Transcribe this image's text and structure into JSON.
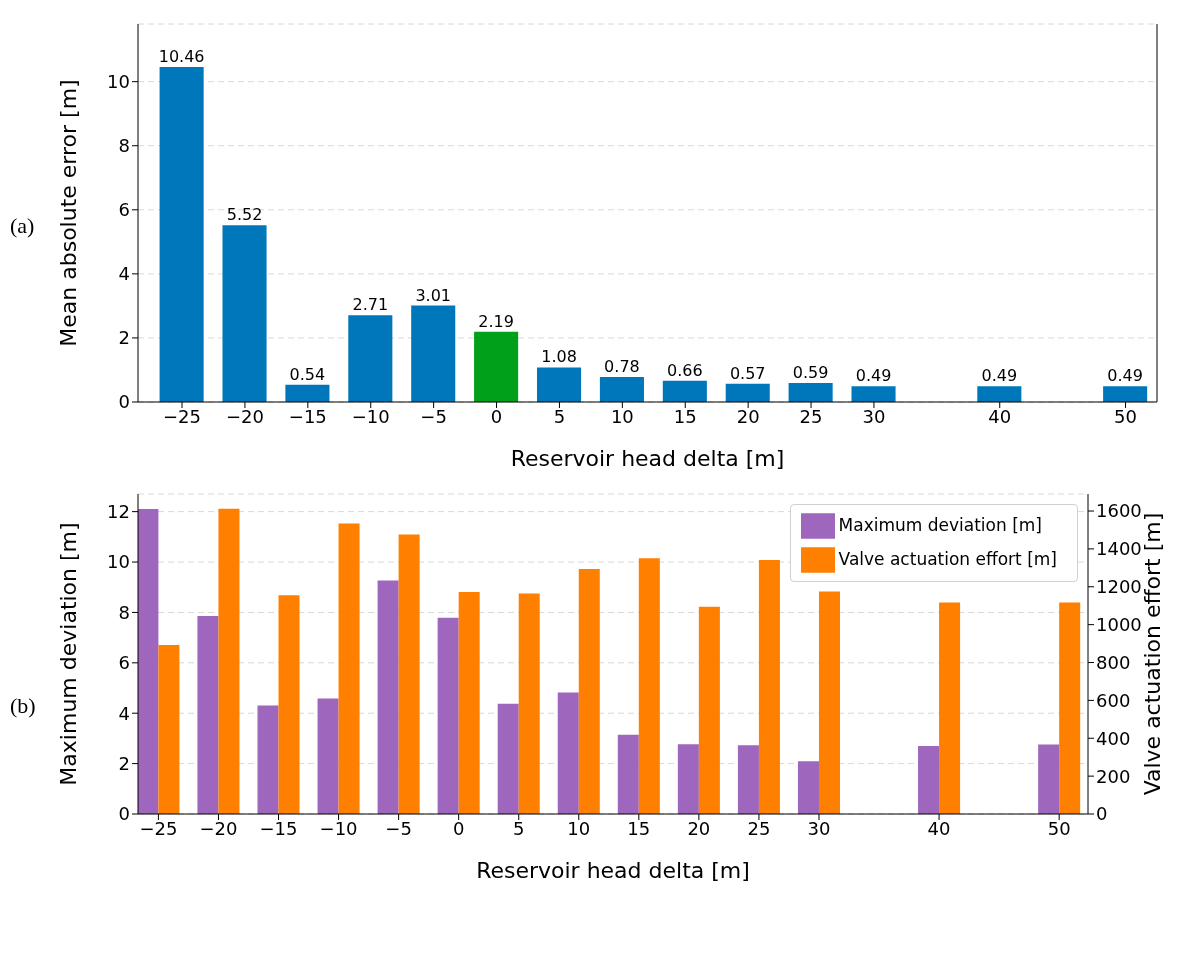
{
  "chart_data": [
    {
      "type": "bar",
      "xlabel": "Reservoir head delta [m]",
      "ylabel": "Mean absolute error [m]",
      "annotations": [
        "(a)"
      ],
      "x": [
        -25,
        -20,
        -15,
        -10,
        -5,
        0,
        5,
        10,
        15,
        20,
        25,
        30,
        40,
        50
      ],
      "values": [
        10.46,
        5.52,
        0.54,
        2.71,
        3.01,
        2.19,
        1.08,
        0.78,
        0.66,
        0.57,
        0.59,
        0.49,
        0.49,
        0.49
      ],
      "colors": [
        "#0077bb",
        "#0077bb",
        "#0077bb",
        "#0077bb",
        "#0077bb",
        "#00a01a",
        "#0077bb",
        "#0077bb",
        "#0077bb",
        "#0077bb",
        "#0077bb",
        "#0077bb",
        "#0077bb",
        "#0077bb"
      ],
      "data_labels": true,
      "xlim": [
        -28.5,
        52.5
      ],
      "xticks": [
        {
          "value": -25,
          "label": "−25"
        },
        {
          "value": -20,
          "label": "−20"
        },
        {
          "value": -15,
          "label": "−15"
        },
        {
          "value": -10,
          "label": "−10"
        },
        {
          "value": -5,
          "label": "−5"
        },
        0,
        5,
        10,
        15,
        20,
        25,
        30,
        40,
        50
      ],
      "ylim": [
        0,
        11.8
      ],
      "yticks": [
        0,
        2,
        4,
        6,
        8,
        10
      ],
      "grid": "y",
      "legend": false
    },
    {
      "type": "bar",
      "xlabel": "Reservoir head delta [m]",
      "ylabel": "Maximum deviation [m]",
      "y2label": "Valve actuation effort [m]",
      "annotations": [
        "(b)"
      ],
      "x": [
        -25,
        -20,
        -15,
        -10,
        -5,
        0,
        5,
        10,
        15,
        20,
        25,
        30,
        40,
        50
      ],
      "series": [
        {
          "name": "Maximum deviation [m]",
          "color": "#9e66bd",
          "values": [
            12.1,
            7.86,
            4.31,
            4.58,
            9.27,
            7.79,
            4.38,
            4.82,
            3.15,
            2.77,
            2.73,
            2.09,
            2.7,
            2.76
          ]
        },
        {
          "name": "Valve actuation effort [m]",
          "color": "#ff7f00",
          "axis": "y2",
          "values": [
            893,
            1612,
            1155,
            1534,
            1476,
            1173,
            1164,
            1294,
            1351,
            1094,
            1342,
            1175,
            1117,
            1117
          ]
        }
      ],
      "xlim": [
        -26.7,
        52.4
      ],
      "xticks": [
        {
          "value": -25,
          "label": "−25"
        },
        {
          "value": -20,
          "label": "−20"
        },
        {
          "value": -15,
          "label": "−15"
        },
        {
          "value": -10,
          "label": "−10"
        },
        {
          "value": -5,
          "label": "−5"
        },
        0,
        5,
        10,
        15,
        20,
        25,
        30,
        40,
        50
      ],
      "ylim": [
        0,
        12.7
      ],
      "yticks": [
        0,
        2,
        4,
        6,
        8,
        10,
        12
      ],
      "y2lim": [
        0,
        1690
      ],
      "y2ticks": [
        0,
        200,
        400,
        600,
        800,
        1000,
        1200,
        1400,
        1600
      ],
      "grid": "y",
      "legend": "top right"
    }
  ]
}
